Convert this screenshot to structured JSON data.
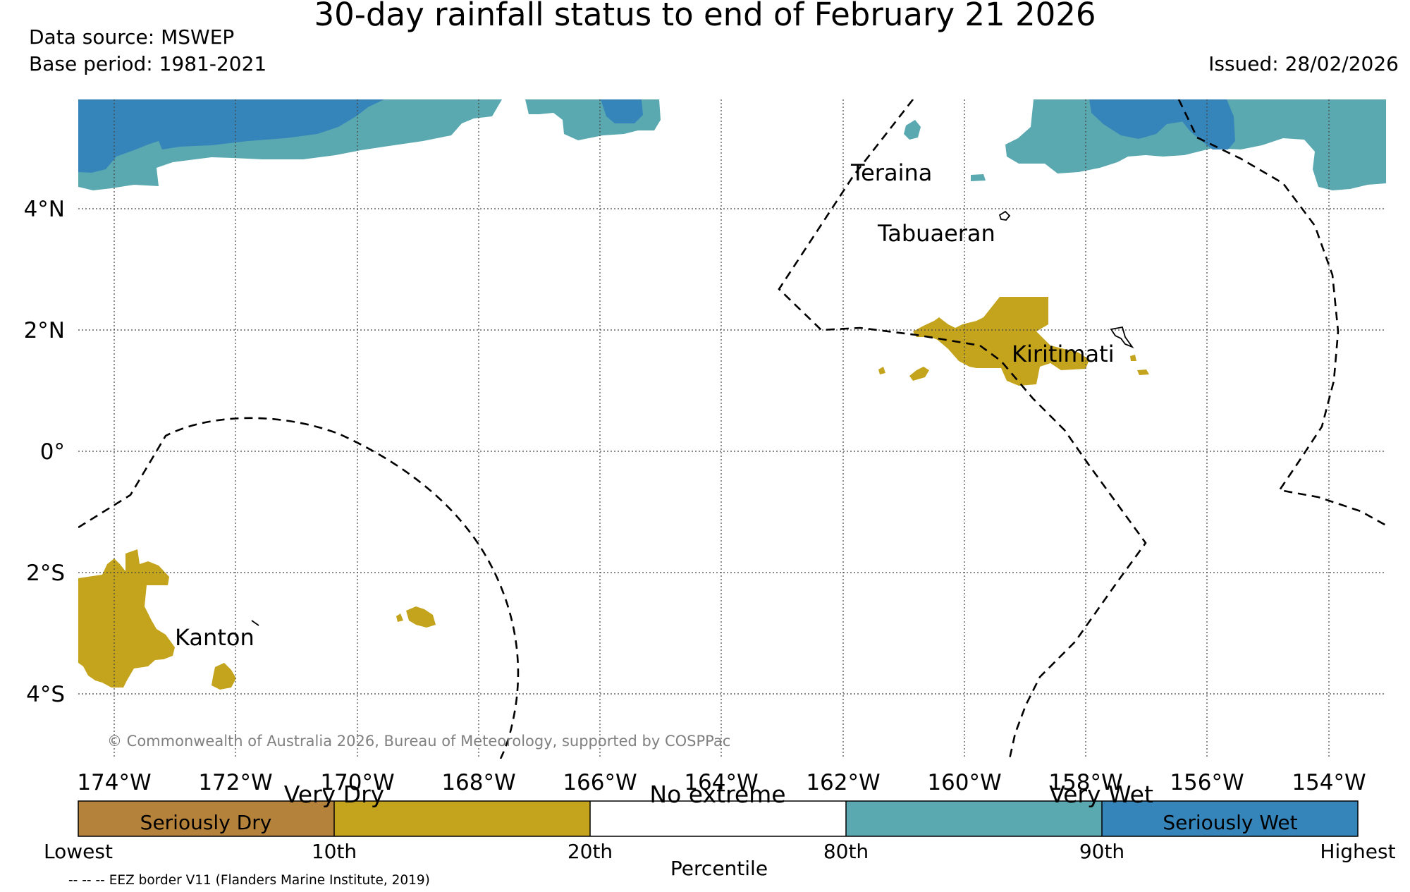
{
  "header": {
    "title": "30-day rainfall status to end of February 21 2026",
    "data_source": "Data source: MSWEP",
    "base_period": "Base period: 1981-2021",
    "issued": "Issued: 28/02/2026"
  },
  "map": {
    "longitude_ticks": [
      "174°W",
      "172°W",
      "170°W",
      "168°W",
      "166°W",
      "164°W",
      "162°W",
      "160°W",
      "158°W",
      "156°W",
      "154°W"
    ],
    "latitude_ticks": [
      "4°N",
      "2°N",
      "0°",
      "2°S",
      "4°S"
    ],
    "places": [
      "Teraina",
      "Tabuaeran",
      "Kiritimati",
      "Kanton"
    ],
    "copyright": "© Commonwealth of Australia 2026, Bureau of Meteorology, supported by COSPPac"
  },
  "legend": {
    "categories_above": [
      "Very Dry",
      "No extreme",
      "Very Wet"
    ],
    "segments": [
      {
        "label": "Seriously Dry",
        "color": "#b5823b"
      },
      {
        "label": "",
        "color": "#c4a41d"
      },
      {
        "label": "",
        "color": "#ffffff"
      },
      {
        "label": "",
        "color": "#5ba9b0"
      },
      {
        "label": "Seriously Wet",
        "color": "#3585bb"
      }
    ],
    "ticks": [
      "Lowest",
      "10th",
      "20th",
      "80th",
      "90th",
      "Highest"
    ],
    "axis_label": "Percentile",
    "eez_note": "-- -- -- EEZ border V11 (Flanders Marine Institute, 2019)"
  }
}
